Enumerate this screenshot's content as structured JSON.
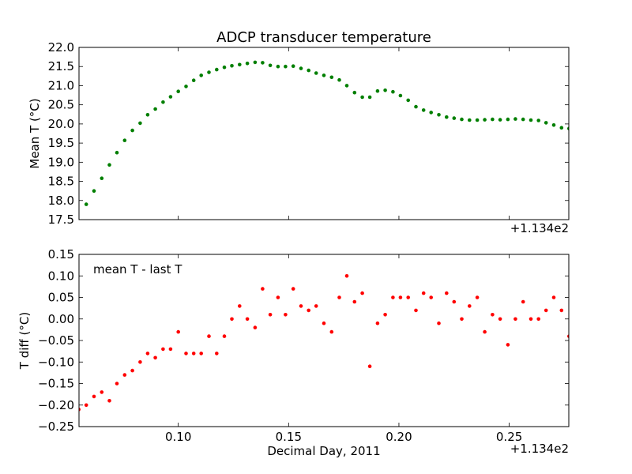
{
  "chart_data": [
    {
      "type": "scatter",
      "title": "ADCP transducer temperature",
      "ylabel": "Mean T (°C)",
      "xlabel": "",
      "offset_label": "+1.134e2",
      "xlim": [
        0.055,
        0.277
      ],
      "ylim": [
        17.5,
        22.0
      ],
      "xticks": [],
      "yticks": [
        "17.5",
        "18.0",
        "18.5",
        "19.0",
        "19.5",
        "20.0",
        "20.5",
        "21.0",
        "21.5",
        "22.0"
      ],
      "color": "#007f00",
      "x": [
        0.0583,
        0.0618,
        0.0653,
        0.0688,
        0.0722,
        0.0757,
        0.0792,
        0.0827,
        0.0861,
        0.0896,
        0.0931,
        0.0965,
        0.1,
        0.1035,
        0.107,
        0.1104,
        0.1139,
        0.1174,
        0.1209,
        0.1243,
        0.1278,
        0.1313,
        0.1348,
        0.1382,
        0.1417,
        0.1452,
        0.1486,
        0.1521,
        0.1556,
        0.1591,
        0.1625,
        0.166,
        0.1695,
        0.173,
        0.1764,
        0.1799,
        0.1834,
        0.1868,
        0.1903,
        0.1938,
        0.1973,
        0.2007,
        0.2042,
        0.2077,
        0.2112,
        0.2146,
        0.2181,
        0.2216,
        0.225,
        0.2285,
        0.232,
        0.2355,
        0.2389,
        0.2424,
        0.2459,
        0.2494,
        0.2528,
        0.2563,
        0.2598,
        0.2633,
        0.2667,
        0.2702,
        0.2737,
        0.2771
      ],
      "y": [
        17.9,
        18.25,
        18.58,
        18.93,
        19.25,
        19.57,
        19.83,
        20.02,
        20.24,
        20.39,
        20.57,
        20.71,
        20.85,
        20.98,
        21.14,
        21.27,
        21.35,
        21.42,
        21.48,
        21.52,
        21.55,
        21.58,
        21.61,
        21.6,
        21.53,
        21.5,
        21.5,
        21.51,
        21.45,
        21.4,
        21.33,
        21.27,
        21.22,
        21.15,
        21.0,
        20.82,
        20.7,
        20.7,
        20.86,
        20.88,
        20.84,
        20.74,
        20.62,
        20.45,
        20.36,
        20.3,
        20.24,
        20.18,
        20.15,
        20.12,
        20.1,
        20.1,
        20.11,
        20.12,
        20.11,
        20.12,
        20.13,
        20.12,
        20.1,
        20.09,
        20.03,
        19.97,
        19.9,
        19.88
      ]
    },
    {
      "type": "scatter",
      "title": "",
      "ylabel": "T diff (°C)",
      "xlabel": "Decimal Day, 2011",
      "offset_label": "+1.134e2",
      "annotation": "mean T - last T",
      "xlim": [
        0.055,
        0.277
      ],
      "ylim": [
        -0.25,
        0.15
      ],
      "xticks": [
        "0.10",
        "0.15",
        "0.20",
        "0.25"
      ],
      "xtick_values": [
        0.1,
        0.15,
        0.2,
        0.25
      ],
      "yticks": [
        "−0.25",
        "−0.20",
        "−0.15",
        "−0.10",
        "−0.05",
        "0.00",
        "0.05",
        "0.10",
        "0.15"
      ],
      "color": "#ff0000",
      "x": [
        0.0549,
        0.0583,
        0.0618,
        0.0653,
        0.0688,
        0.0722,
        0.0757,
        0.0792,
        0.0827,
        0.0861,
        0.0896,
        0.0931,
        0.0965,
        0.1,
        0.1035,
        0.107,
        0.1104,
        0.1139,
        0.1174,
        0.1209,
        0.1243,
        0.1278,
        0.1313,
        0.1348,
        0.1382,
        0.1417,
        0.1452,
        0.1486,
        0.1521,
        0.1556,
        0.1591,
        0.1625,
        0.166,
        0.1695,
        0.173,
        0.1764,
        0.1799,
        0.1834,
        0.1868,
        0.1903,
        0.1938,
        0.1973,
        0.2007,
        0.2042,
        0.2077,
        0.2112,
        0.2146,
        0.2181,
        0.2216,
        0.225,
        0.2285,
        0.232,
        0.2355,
        0.2389,
        0.2424,
        0.2459,
        0.2494,
        0.2528,
        0.2563,
        0.2598,
        0.2633,
        0.2667,
        0.2702,
        0.2737,
        0.2771
      ],
      "y": [
        -0.21,
        -0.2,
        -0.18,
        -0.17,
        -0.19,
        -0.15,
        -0.13,
        -0.12,
        -0.1,
        -0.08,
        -0.09,
        -0.07,
        -0.07,
        -0.03,
        -0.08,
        -0.08,
        -0.08,
        -0.04,
        -0.08,
        -0.04,
        0.0,
        0.03,
        0.0,
        -0.02,
        0.07,
        0.01,
        0.05,
        0.01,
        0.07,
        0.03,
        0.02,
        0.03,
        -0.01,
        -0.03,
        0.05,
        0.1,
        0.04,
        0.06,
        -0.11,
        -0.01,
        0.01,
        0.05,
        0.05,
        0.05,
        0.02,
        0.06,
        0.05,
        -0.01,
        0.06,
        0.04,
        0.0,
        0.03,
        0.05,
        -0.03,
        0.01,
        0.0,
        -0.06,
        0.0,
        0.04,
        0.0,
        0.0,
        0.02,
        0.05,
        0.02,
        -0.04
      ]
    }
  ]
}
